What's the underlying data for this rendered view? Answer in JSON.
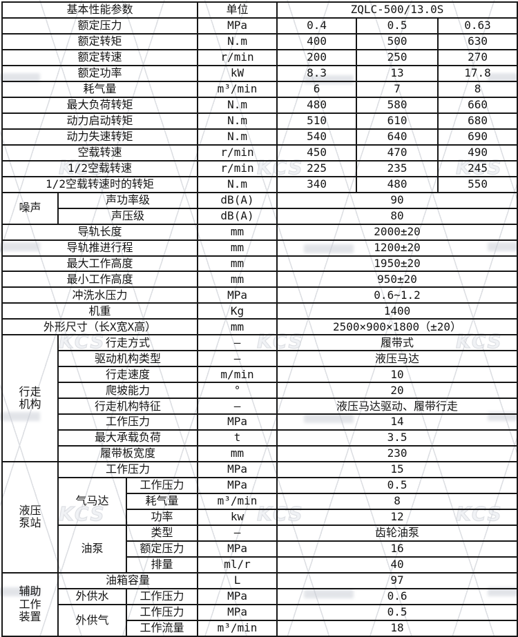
{
  "watermark": {
    "logo_text": "KCS"
  },
  "table": {
    "rows": [
      {
        "c": [
          {
            "t": "基本性能参数",
            "cs": 3,
            "n": "header-basic-params"
          },
          {
            "t": "单位",
            "n": "header-unit"
          },
          {
            "t": "ZQLC-500/13.0S",
            "cs": 3,
            "n": "header-model"
          }
        ]
      },
      {
        "c": [
          {
            "t": "额定压力",
            "cs": 3
          },
          {
            "t": "MPa"
          },
          {
            "t": "0.4"
          },
          {
            "t": "0.5"
          },
          {
            "t": "0.63"
          }
        ]
      },
      {
        "c": [
          {
            "t": "额定转矩",
            "cs": 3
          },
          {
            "t": "N.m"
          },
          {
            "t": "400"
          },
          {
            "t": "500"
          },
          {
            "t": "630"
          }
        ]
      },
      {
        "c": [
          {
            "t": "额定转速",
            "cs": 3
          },
          {
            "t": "r/min"
          },
          {
            "t": "200"
          },
          {
            "t": "250"
          },
          {
            "t": "270"
          }
        ]
      },
      {
        "c": [
          {
            "t": "额定功率",
            "cs": 3
          },
          {
            "t": "kW"
          },
          {
            "t": "8.3"
          },
          {
            "t": "13"
          },
          {
            "t": "17.8"
          }
        ]
      },
      {
        "c": [
          {
            "t": "耗气量",
            "cs": 3
          },
          {
            "t": "m³/min"
          },
          {
            "t": "6"
          },
          {
            "t": "7"
          },
          {
            "t": "8"
          }
        ]
      },
      {
        "c": [
          {
            "t": "最大负荷转矩",
            "cs": 3
          },
          {
            "t": "N.m"
          },
          {
            "t": "480"
          },
          {
            "t": "580"
          },
          {
            "t": "660"
          }
        ]
      },
      {
        "c": [
          {
            "t": "动力启动转矩",
            "cs": 3
          },
          {
            "t": "N.m"
          },
          {
            "t": "510"
          },
          {
            "t": "610"
          },
          {
            "t": "680"
          }
        ]
      },
      {
        "c": [
          {
            "t": "动力失速转矩",
            "cs": 3
          },
          {
            "t": "N.m"
          },
          {
            "t": "540"
          },
          {
            "t": "640"
          },
          {
            "t": "690"
          }
        ]
      },
      {
        "c": [
          {
            "t": "空载转速",
            "cs": 3
          },
          {
            "t": "r/min"
          },
          {
            "t": "450"
          },
          {
            "t": "470"
          },
          {
            "t": "490"
          }
        ]
      },
      {
        "c": [
          {
            "t": "1/2空载转速",
            "cs": 3
          },
          {
            "t": "r/min"
          },
          {
            "t": "225"
          },
          {
            "t": "235"
          },
          {
            "t": "245"
          }
        ]
      },
      {
        "c": [
          {
            "t": "1/2空载转速时的转矩",
            "cs": 3
          },
          {
            "t": "N.m"
          },
          {
            "t": "340"
          },
          {
            "t": "480"
          },
          {
            "t": "550"
          }
        ]
      },
      {
        "c": [
          {
            "t": "噪声",
            "rs": 2,
            "n": "section-noise"
          },
          {
            "t": "声功率级",
            "cs": 2
          },
          {
            "t": "dB(A)"
          },
          {
            "t": "90",
            "cs": 3
          }
        ]
      },
      {
        "c": [
          {
            "t": "声压级",
            "cs": 2
          },
          {
            "t": "dB(A)"
          },
          {
            "t": "80",
            "cs": 3
          }
        ]
      },
      {
        "c": [
          {
            "t": "导轨长度",
            "cs": 3
          },
          {
            "t": "mm"
          },
          {
            "t": "2000±20",
            "cs": 3
          }
        ]
      },
      {
        "c": [
          {
            "t": "导轨推进行程",
            "cs": 3
          },
          {
            "t": "mm"
          },
          {
            "t": "1200±20",
            "cs": 3
          }
        ]
      },
      {
        "c": [
          {
            "t": "最大工作高度",
            "cs": 3
          },
          {
            "t": "mm"
          },
          {
            "t": "1950±20",
            "cs": 3
          }
        ]
      },
      {
        "c": [
          {
            "t": "最小工作高度",
            "cs": 3
          },
          {
            "t": "mm"
          },
          {
            "t": "950±20",
            "cs": 3
          }
        ]
      },
      {
        "c": [
          {
            "t": "冲洗水压力",
            "cs": 3
          },
          {
            "t": "MPa"
          },
          {
            "t": "0.6~1.2",
            "cs": 3
          }
        ]
      },
      {
        "c": [
          {
            "t": "机重",
            "cs": 3
          },
          {
            "t": "Kg"
          },
          {
            "t": "1400",
            "cs": 3
          }
        ]
      },
      {
        "c": [
          {
            "t": "外形尺寸（长X宽X高）",
            "cs": 3
          },
          {
            "t": "mm"
          },
          {
            "t": "2500×900×1800（±20）",
            "cs": 3
          }
        ]
      },
      {
        "c": [
          {
            "t": "行走\n机构",
            "rs": 8,
            "n": "section-travel-mechanism"
          },
          {
            "t": "行走方式",
            "cs": 2
          },
          {
            "t": "—"
          },
          {
            "t": "履带式",
            "cs": 3
          }
        ]
      },
      {
        "c": [
          {
            "t": "驱动机构类型",
            "cs": 2
          },
          {
            "t": "—"
          },
          {
            "t": "液压马达",
            "cs": 3
          }
        ]
      },
      {
        "c": [
          {
            "t": "行走速度",
            "cs": 2
          },
          {
            "t": "m/min"
          },
          {
            "t": "10",
            "cs": 3
          }
        ]
      },
      {
        "c": [
          {
            "t": "爬坡能力",
            "cs": 2
          },
          {
            "t": "°"
          },
          {
            "t": "20",
            "cs": 3
          }
        ]
      },
      {
        "c": [
          {
            "t": "行走机构特征",
            "cs": 2
          },
          {
            "t": "—"
          },
          {
            "t": "液压马达驱动、履带行走",
            "cs": 3
          }
        ]
      },
      {
        "c": [
          {
            "t": "工作压力",
            "cs": 2
          },
          {
            "t": "MPa"
          },
          {
            "t": "14",
            "cs": 3
          }
        ]
      },
      {
        "c": [
          {
            "t": "最大承载负荷",
            "cs": 2
          },
          {
            "t": "t"
          },
          {
            "t": "3.5",
            "cs": 3
          }
        ]
      },
      {
        "c": [
          {
            "t": "履带板宽度",
            "cs": 2
          },
          {
            "t": "mm"
          },
          {
            "t": "230",
            "cs": 3
          }
        ]
      },
      {
        "c": [
          {
            "t": "液压\n泵站",
            "rs": 7,
            "n": "section-hydraulic-pump-station"
          },
          {
            "t": "工作压力",
            "cs": 2
          },
          {
            "t": "MPa"
          },
          {
            "t": "15",
            "cs": 3
          }
        ]
      },
      {
        "c": [
          {
            "t": "气马达",
            "rs": 3,
            "n": "group-air-motor"
          },
          {
            "t": "工作压力"
          },
          {
            "t": "MPa"
          },
          {
            "t": "0.5",
            "cs": 3
          }
        ]
      },
      {
        "c": [
          {
            "t": "耗气量"
          },
          {
            "t": "m³/min"
          },
          {
            "t": "8",
            "cs": 3
          }
        ]
      },
      {
        "c": [
          {
            "t": "功率"
          },
          {
            "t": "kw"
          },
          {
            "t": "12",
            "cs": 3
          }
        ]
      },
      {
        "c": [
          {
            "t": "油泵",
            "rs": 3,
            "n": "group-oil-pump"
          },
          {
            "t": "类型"
          },
          {
            "t": "—"
          },
          {
            "t": "齿轮油泵",
            "cs": 3
          }
        ]
      },
      {
        "c": [
          {
            "t": "额定压力"
          },
          {
            "t": "MPa"
          },
          {
            "t": "16",
            "cs": 3
          }
        ]
      },
      {
        "c": [
          {
            "t": "排量"
          },
          {
            "t": "ml/r"
          },
          {
            "t": "40",
            "cs": 3
          }
        ]
      },
      {
        "c": [
          {
            "t": "辅助\n工作\n装置",
            "rs": 4,
            "n": "section-auxiliary-device"
          },
          {
            "t": "油箱容量",
            "cs": 2
          },
          {
            "t": "L"
          },
          {
            "t": "97",
            "cs": 3
          }
        ]
      },
      {
        "c": [
          {
            "t": "外供水",
            "n": "group-external-water"
          },
          {
            "t": "工作压力"
          },
          {
            "t": "MPa"
          },
          {
            "t": "0.6",
            "cs": 3
          }
        ]
      },
      {
        "c": [
          {
            "t": "外供气",
            "rs": 2,
            "n": "group-external-air"
          },
          {
            "t": "工作压力"
          },
          {
            "t": "MPa"
          },
          {
            "t": "0.5",
            "cs": 3
          }
        ]
      },
      {
        "c": [
          {
            "t": "工作流量"
          },
          {
            "t": "m³/min"
          },
          {
            "t": "18",
            "cs": 3
          }
        ]
      }
    ]
  }
}
